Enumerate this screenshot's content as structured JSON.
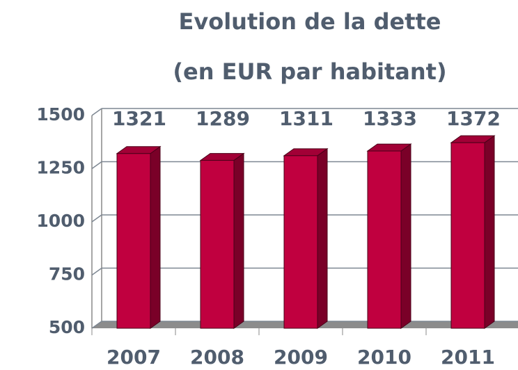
{
  "chart_data": {
    "type": "bar3d",
    "title": "Evolution de la dette",
    "subtitle": "(en EUR par habitant)",
    "categories": [
      "2007",
      "2008",
      "2009",
      "2010",
      "2011"
    ],
    "values": [
      1321,
      1289,
      1311,
      1333,
      1372
    ],
    "color": "#c0003f",
    "ylim": [
      500,
      1500
    ],
    "yticks": [
      500,
      750,
      1000,
      1250,
      1500
    ],
    "grid": true
  }
}
